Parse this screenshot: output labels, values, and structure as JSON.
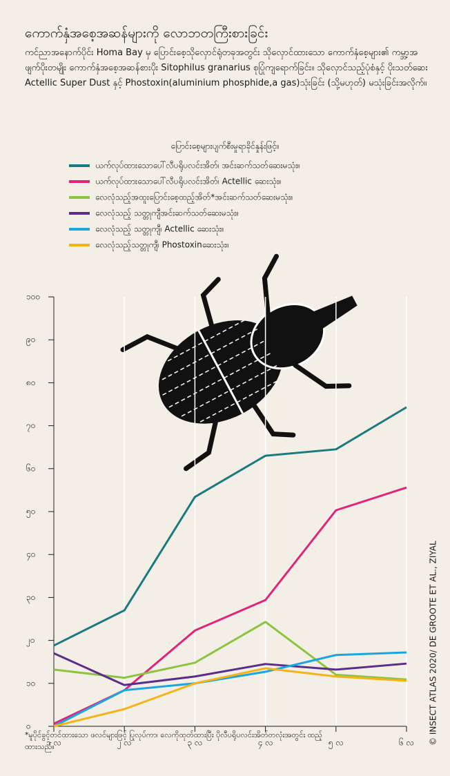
{
  "chart_data": {
    "type": "line",
    "title": "ကောက်နှံအစေ့အဆန်များကို လောဘတကြီးစားခြင်း",
    "subtitle": "ကင်ညာအနောက်ပိုင်း Homa Bay မှ ပြောင်းစေ့သိုလှောင်ရုံတခုအတွင်း သိုလှောင်ထားသော ကောက်နှံစေ့များ၏ ကမ္ဘာ့အဖျက်ပိုးတမျိုး ကောက်နှံအစေ့အဆန်စားပိုး Sitophilus granarius စုပြုံကျရောက်ခြင်း။ သိုလှောင်သည့်ပုံစံနှင့် ပိုးသတ်ဆေး Actellic Super Dust နှင့် Phostoxin(aluminium phosphide,a gas)သုံးခြင်း (သို့မဟုတ်) မသုံးခြင်းအလိုက်။",
    "legend_title": "ပြောင်းစေ့များပျက်စီးမှုရာခိုင်နှုန်းဖြင့်။",
    "categories": [
      "၁ လ",
      "၂ လ",
      "၃ လ",
      "၄ လ",
      "၅ လ",
      "၆ လ"
    ],
    "series": [
      {
        "name": "ယက်လုပ်ထားသောပေါ်လီပရိုပလင်းအိတ်၊ အင်းဆက်သတ်ဆေးမသုံး။",
        "color": "#1b7a80",
        "values": [
          18.8,
          27,
          53.4,
          63,
          64.5,
          74.3
        ]
      },
      {
        "name": "ယက်လုပ်ထားသောပေါ်လီပရိုပလင်းအိတ်၊ Actellic ဆေးသုံး။",
        "color": "#e0247a",
        "values": [
          0.6,
          8.4,
          22.3,
          29.4,
          50.3,
          55.6
        ]
      },
      {
        "name": "လေလုံသည့်အထူးပြောင်းစေ့ထည့်အိတ်*အင်းဆက်သတ်ဆေးမသုံး။",
        "color": "#8cc43f",
        "values": [
          13.2,
          11.3,
          14.8,
          24.3,
          12,
          10.9
        ]
      },
      {
        "name": "လေလုံသည့် သတ္တုကျီအင်းဆက်သတ်ဆေးမသုံး။",
        "color": "#5b2d8a",
        "values": [
          17,
          9.6,
          11.6,
          14.5,
          13.2,
          14.6
        ]
      },
      {
        "name": "လေလုံသည့် သတ္တုကျီ၊ Actellic ဆေးသုံး။",
        "color": "#1ba6e0",
        "values": [
          0,
          8.4,
          10,
          12.7,
          16.6,
          17.2
        ]
      },
      {
        "name": "လေလုံသည့်သတ္တုကျီ၊ Phostoxinဆေးသုံး။",
        "color": "#f5b31b",
        "values": [
          0,
          4,
          10,
          13.5,
          11.6,
          10.6
        ]
      }
    ],
    "ylim": [
      0,
      100
    ],
    "yticks": [
      {
        "value": 0,
        "label": "၀"
      },
      {
        "value": 10,
        "label": "၁၀"
      },
      {
        "value": 20,
        "label": "၂၀"
      },
      {
        "value": 30,
        "label": "၃၀"
      },
      {
        "value": 40,
        "label": "၄၀"
      },
      {
        "value": 50,
        "label": "၅၀"
      },
      {
        "value": 60,
        "label": "၆၀"
      },
      {
        "value": 70,
        "label": "၇၀"
      },
      {
        "value": 80,
        "label": "၈၀"
      },
      {
        "value": 90,
        "label": "၉၀"
      },
      {
        "value": 100,
        "label": "၁၀၀"
      }
    ],
    "footnote": "*မူပိုင်ခွင့်တင်ထားသော ဖလင်များဖြင့် ပြုလုပ်ကာ၊ လေကိုထုတ်ထားပြီး ပိုလီပရိုပလင်းအိတ်တလုံးအတွင်း ထည့်ထားသည်။",
    "source": "© INSECT ATLAS 2020/ DE GROOTE ET AL., ZIYAL"
  }
}
